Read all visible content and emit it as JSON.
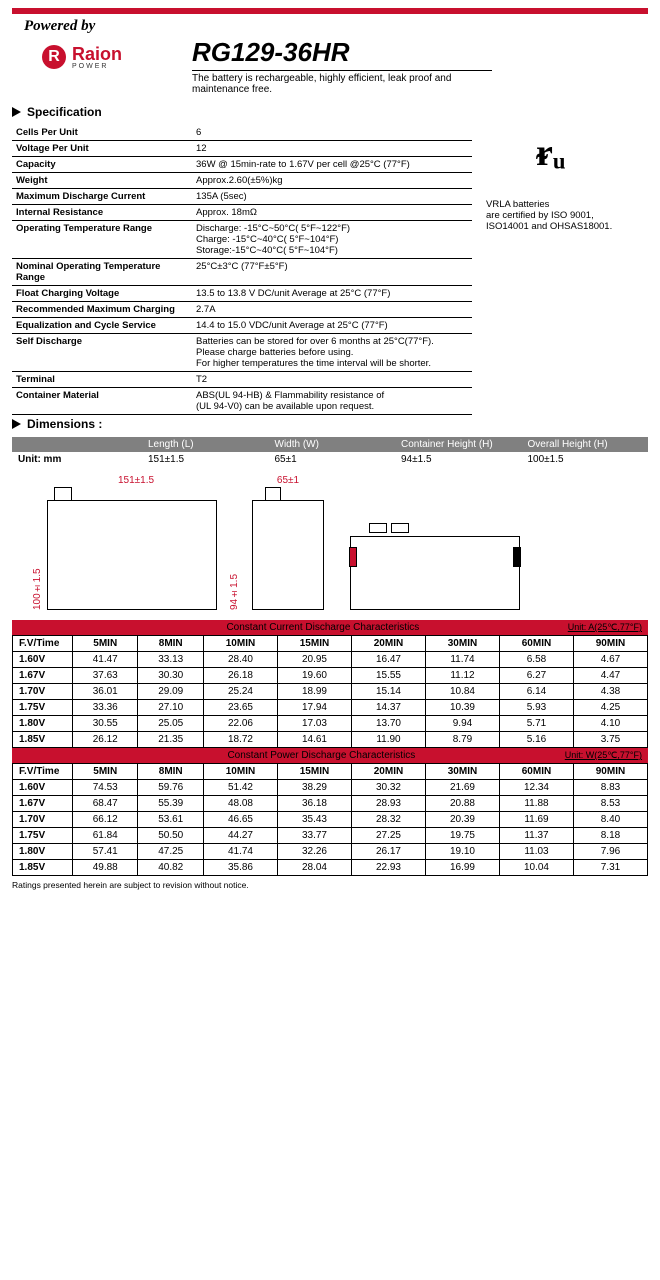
{
  "header": {
    "powered_by": "Powered by",
    "logo_text": "Raion",
    "logo_sub": "POWER",
    "model": "RG129-36HR",
    "tagline": "The battery is rechargeable, highly efficient, leak proof and maintenance free."
  },
  "spec": {
    "title": "Specification",
    "rows": [
      {
        "label": "Cells Per Unit",
        "value": "6"
      },
      {
        "label": "Voltage Per Unit",
        "value": "12"
      },
      {
        "label": "Capacity",
        "value": "36W @ 15min-rate to 1.67V per cell @25°C (77°F)"
      },
      {
        "label": "Weight",
        "value": "Approx.2.60(±5%)kg"
      },
      {
        "label": "Maximum Discharge Current",
        "value": "135A (5sec)"
      },
      {
        "label": "Internal Resistance",
        "value": "Approx. 18mΩ"
      },
      {
        "label": "Operating Temperature Range",
        "value": "Discharge: -15°C~50°C( 5°F~122°F)\nCharge: -15°C~40°C( 5°F~104°F)\nStorage:-15°C~40°C( 5°F~104°F)"
      },
      {
        "label": "Nominal Operating Temperature Range",
        "value": "25°C±3°C (77°F±5°F)"
      },
      {
        "label": "Float Charging Voltage",
        "value": "13.5 to 13.8 V DC/unit Average at 25°C (77°F)"
      },
      {
        "label": "Recommended Maximum Charging",
        "value": "2.7A"
      },
      {
        "label": "Equalization and Cycle Service",
        "value": "14.4 to 15.0 VDC/unit Average at 25°C (77°F)"
      },
      {
        "label": "Self Discharge",
        "value": "Batteries can be stored for over 6 months at 25°C(77°F).\nPlease charge batteries before using.\nFor higher temperatures the time interval will be shorter."
      },
      {
        "label": "Terminal",
        "value": "T2"
      },
      {
        "label": "Container Material",
        "value": "ABS(UL 94-HB) & Flammability resistance of\n(UL 94-V0) can be available upon request."
      }
    ],
    "cert": "VRLA batteries\nare certified by ISO 9001,\nISO14001 and OHSAS18001."
  },
  "dimensions": {
    "title": "Dimensions :",
    "unit": "Unit: mm",
    "headers": [
      "Length (L)",
      "Width (W)",
      "Container Height (H)",
      "Overall Height (H)"
    ],
    "values": [
      "151±1.5",
      "65±1",
      "94±1.5",
      "100±1.5"
    ],
    "dia_length": "151±1.5",
    "dia_width": "65±1",
    "dia_cheight": "94±1.5",
    "dia_oheight": "100±1.5"
  },
  "tables": {
    "current": {
      "title": "Constant Current Discharge Characteristics",
      "unit": "Unit: A(25℃,77°F)",
      "col_header": "F.V/Time",
      "columns": [
        "5MIN",
        "8MIN",
        "10MIN",
        "15MIN",
        "20MIN",
        "30MIN",
        "60MIN",
        "90MIN"
      ],
      "rows": [
        {
          "v": "1.60V",
          "d": [
            "41.47",
            "33.13",
            "28.40",
            "20.95",
            "16.47",
            "11.74",
            "6.58",
            "4.67"
          ]
        },
        {
          "v": "1.67V",
          "d": [
            "37.63",
            "30.30",
            "26.18",
            "19.60",
            "15.55",
            "11.12",
            "6.27",
            "4.47"
          ]
        },
        {
          "v": "1.70V",
          "d": [
            "36.01",
            "29.09",
            "25.24",
            "18.99",
            "15.14",
            "10.84",
            "6.14",
            "4.38"
          ]
        },
        {
          "v": "1.75V",
          "d": [
            "33.36",
            "27.10",
            "23.65",
            "17.94",
            "14.37",
            "10.39",
            "5.93",
            "4.25"
          ]
        },
        {
          "v": "1.80V",
          "d": [
            "30.55",
            "25.05",
            "22.06",
            "17.03",
            "13.70",
            "9.94",
            "5.71",
            "4.10"
          ]
        },
        {
          "v": "1.85V",
          "d": [
            "26.12",
            "21.35",
            "18.72",
            "14.61",
            "11.90",
            "8.79",
            "5.16",
            "3.75"
          ]
        }
      ]
    },
    "power": {
      "title": "Constant Power Discharge Characteristics",
      "unit": "Unit: W(25℃,77°F)",
      "col_header": "F.V/Time",
      "columns": [
        "5MIN",
        "8MIN",
        "10MIN",
        "15MIN",
        "20MIN",
        "30MIN",
        "60MIN",
        "90MIN"
      ],
      "rows": [
        {
          "v": "1.60V",
          "d": [
            "74.53",
            "59.76",
            "51.42",
            "38.29",
            "30.32",
            "21.69",
            "12.34",
            "8.83"
          ]
        },
        {
          "v": "1.67V",
          "d": [
            "68.47",
            "55.39",
            "48.08",
            "36.18",
            "28.93",
            "20.88",
            "11.88",
            "8.53"
          ]
        },
        {
          "v": "1.70V",
          "d": [
            "66.12",
            "53.61",
            "46.65",
            "35.43",
            "28.32",
            "20.39",
            "11.69",
            "8.40"
          ]
        },
        {
          "v": "1.75V",
          "d": [
            "61.84",
            "50.50",
            "44.27",
            "33.77",
            "27.25",
            "19.75",
            "11.37",
            "8.18"
          ]
        },
        {
          "v": "1.80V",
          "d": [
            "57.41",
            "47.25",
            "41.74",
            "32.26",
            "26.17",
            "19.10",
            "11.03",
            "7.96"
          ]
        },
        {
          "v": "1.85V",
          "d": [
            "49.88",
            "40.82",
            "35.86",
            "28.04",
            "22.93",
            "16.99",
            "10.04",
            "7.31"
          ]
        }
      ]
    }
  },
  "footer": "Ratings presented herein are subject to revision without notice.",
  "colors": {
    "red": "#c8102e",
    "gray": "#808080"
  }
}
